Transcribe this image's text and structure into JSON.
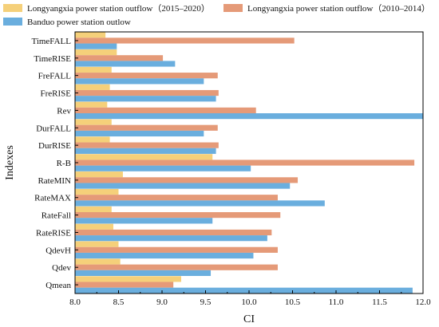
{
  "chart_data": {
    "type": "bar",
    "orientation": "horizontal",
    "title": "",
    "xlabel": "CI",
    "ylabel": "Indexes",
    "xlim": [
      8.0,
      12.0
    ],
    "xticks": [
      "8.0",
      "8.5",
      "9.0",
      "9.5",
      "10.0",
      "10.5",
      "11.0",
      "11.5",
      "12.0"
    ],
    "categories": [
      "TimeFALL",
      "TimeRISE",
      "FreFALL",
      "FreRISE",
      "Rev",
      "DurFALL",
      "DurRISE",
      "R-B",
      "RateMIN",
      "RateMAX",
      "RateFall",
      "RateRISE",
      "QdevH",
      "Qdev",
      "Qmean"
    ],
    "series": [
      {
        "name": "Longyangxia power station outflow（2015–2020）",
        "color": "#f5d07a",
        "values": [
          8.35,
          8.48,
          8.42,
          8.4,
          8.37,
          8.42,
          8.4,
          9.58,
          8.55,
          8.5,
          8.42,
          8.44,
          8.5,
          8.52,
          9.22
        ]
      },
      {
        "name": "Longyangxia power station outflow（2010–2014）",
        "color": "#e59a78",
        "values": [
          10.52,
          9.01,
          9.64,
          9.65,
          10.08,
          9.64,
          9.65,
          11.9,
          10.56,
          10.33,
          10.36,
          10.26,
          10.33,
          10.33,
          9.13
        ]
      },
      {
        "name": "Banduo power station outlow",
        "color": "#6aaede",
        "values": [
          8.48,
          9.15,
          9.48,
          9.62,
          12.0,
          9.48,
          9.62,
          10.02,
          10.47,
          10.87,
          9.58,
          10.21,
          10.05,
          9.56,
          11.88
        ]
      }
    ]
  }
}
